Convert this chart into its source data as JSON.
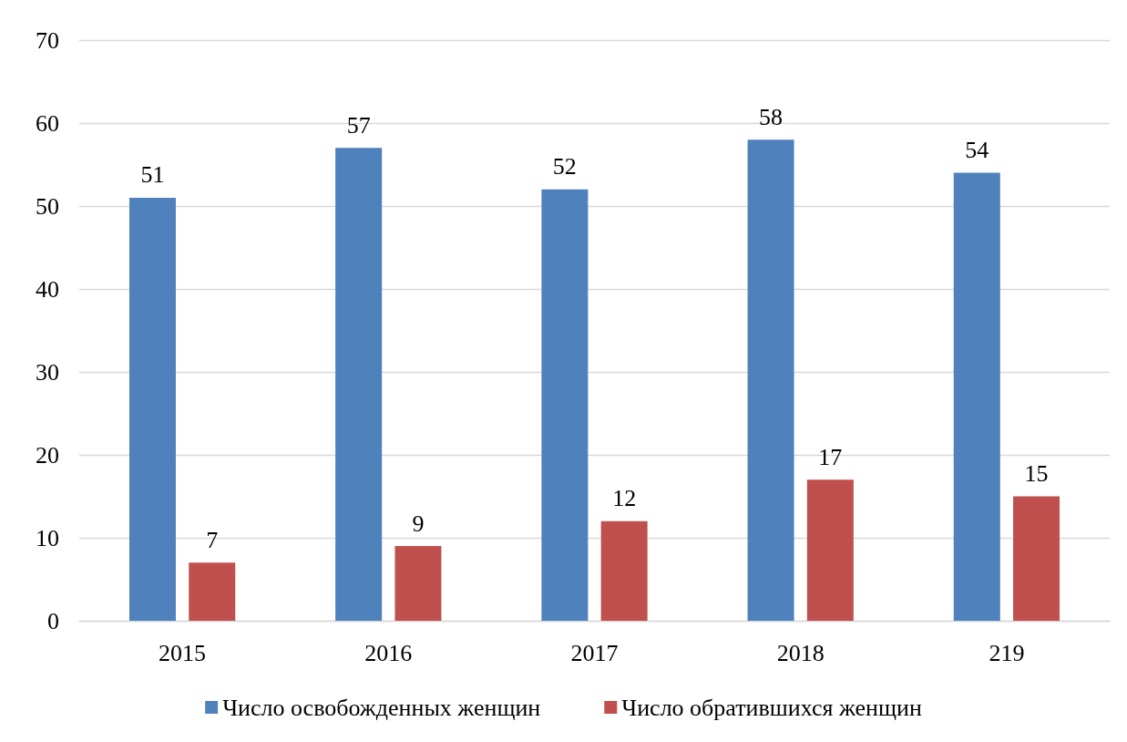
{
  "chart_data": {
    "type": "bar",
    "categories": [
      "2015",
      "2016",
      "2017",
      "2018",
      "219"
    ],
    "series": [
      {
        "name": "Число освобожденных женщин",
        "color": "#4f81bd",
        "values": [
          51,
          57,
          52,
          58,
          54
        ]
      },
      {
        "name": "Число обратившихся женщин",
        "color": "#c0504d",
        "values": [
          7,
          9,
          12,
          17,
          15
        ]
      }
    ],
    "ylim": [
      0,
      70
    ],
    "yticks": [
      0,
      10,
      20,
      30,
      40,
      50,
      60,
      70
    ],
    "grid": "y",
    "legend": "bottom",
    "data_labels": true
  }
}
